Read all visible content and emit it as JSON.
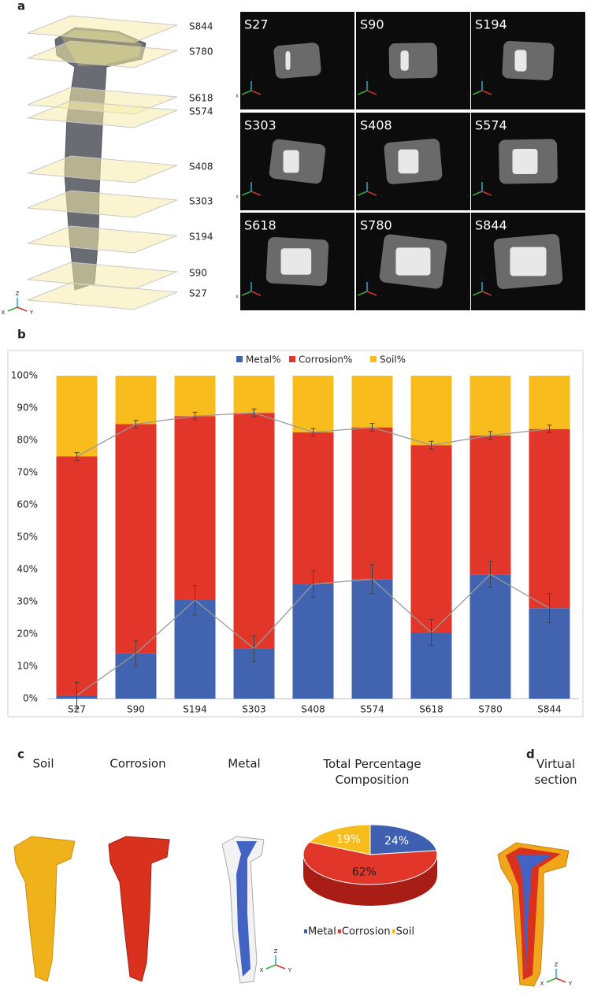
{
  "panel_labels": [
    "a",
    "b",
    "c",
    "d"
  ],
  "axis_letters": [
    "Z",
    "X",
    "Y"
  ],
  "panel_a": {
    "slices": [
      "S844",
      "S780",
      "S618",
      "S574",
      "S408",
      "S303",
      "S194",
      "S90",
      "S27"
    ],
    "images": [
      "S27",
      "S90",
      "S194",
      "S303",
      "S408",
      "S574",
      "S618",
      "S780",
      "S844"
    ]
  },
  "panel_c": {
    "renders": [
      "Soil",
      "Corrosion",
      "Metal"
    ]
  },
  "panel_d": {
    "title": "Virtual section"
  },
  "chart_data": [
    {
      "type": "stacked-bar",
      "categories": [
        "S27",
        "S90",
        "S194",
        "S303",
        "S408",
        "S574",
        "S618",
        "S780",
        "S844"
      ],
      "series": [
        {
          "name": "Metal%",
          "color": "#4263b0",
          "values": [
            1,
            14,
            30.5,
            15.5,
            35.5,
            37,
            20.5,
            38.5,
            28
          ],
          "errors": [
            4,
            4,
            4.5,
            4,
            4,
            4.5,
            4,
            4,
            4.5
          ]
        },
        {
          "name": "Corrosion%",
          "color": "#e2362a",
          "values": [
            74,
            71,
            57,
            73,
            47,
            47,
            58,
            43,
            55.5
          ],
          "errors": [
            1.2,
            1.2,
            1.2,
            1.2,
            1.2,
            1.2,
            1.2,
            1.2,
            1.2
          ]
        },
        {
          "name": "Soil%",
          "color": "#f8bc1c",
          "values": [
            25,
            15,
            12.5,
            11.5,
            17.5,
            16,
            21.5,
            18.5,
            16.5
          ]
        }
      ],
      "ylim": [
        0,
        100
      ],
      "yticks": [
        {
          "value": 0,
          "label": "0%"
        },
        {
          "value": 10,
          "label": "10%"
        },
        {
          "value": 20,
          "label": "20%"
        },
        {
          "value": 30,
          "label": "30%"
        },
        {
          "value": 40,
          "label": "40%"
        },
        {
          "value": 50,
          "label": "50%"
        },
        {
          "value": 60,
          "label": "60%"
        },
        {
          "value": 70,
          "label": "70%"
        },
        {
          "value": 80,
          "label": "80%"
        },
        {
          "value": 90,
          "label": "90%"
        },
        {
          "value": 100,
          "label": "100%"
        }
      ],
      "legend": "top"
    },
    {
      "type": "pie",
      "title": "Total Percentage Composition",
      "categories": [
        "Metal",
        "Corrosion",
        "Soil"
      ],
      "values": [
        24,
        62,
        19
      ],
      "value_labels": [
        "24%",
        "62%",
        "19%"
      ],
      "colors": [
        "#3f5fb0",
        "#e2362a",
        "#f8bc1c"
      ],
      "legend": "bottom"
    }
  ]
}
